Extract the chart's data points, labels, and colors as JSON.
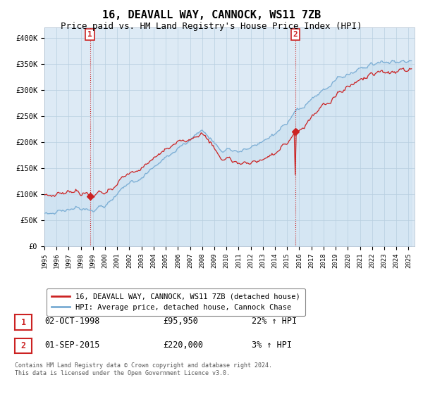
{
  "title": "16, DEAVALL WAY, CANNOCK, WS11 7ZB",
  "subtitle": "Price paid vs. HM Land Registry's House Price Index (HPI)",
  "ylim": [
    0,
    420000
  ],
  "yticks": [
    0,
    50000,
    100000,
    150000,
    200000,
    250000,
    300000,
    350000,
    400000
  ],
  "ytick_labels": [
    "£0",
    "£50K",
    "£100K",
    "£150K",
    "£200K",
    "£250K",
    "£300K",
    "£350K",
    "£400K"
  ],
  "xlim_start": 1995.3,
  "xlim_end": 2025.5,
  "hpi_color": "#7aadd4",
  "hpi_fill_color": "#c8dff0",
  "price_color": "#cc2222",
  "sale1_date": 1998.75,
  "sale1_price": 95950,
  "sale1_label": "1",
  "sale2_date": 2015.67,
  "sale2_price": 220000,
  "sale2_label": "2",
  "legend_label1": "16, DEAVALL WAY, CANNOCK, WS11 7ZB (detached house)",
  "legend_label2": "HPI: Average price, detached house, Cannock Chase",
  "table_row1": [
    "1",
    "02-OCT-1998",
    "£95,950",
    "22% ↑ HPI"
  ],
  "table_row2": [
    "2",
    "01-SEP-2015",
    "£220,000",
    "3% ↑ HPI"
  ],
  "footer": "Contains HM Land Registry data © Crown copyright and database right 2024.\nThis data is licensed under the Open Government Licence v3.0.",
  "background_color": "#ddeaf5",
  "grid_color": "#b8cfe0",
  "title_fontsize": 11,
  "subtitle_fontsize": 9
}
